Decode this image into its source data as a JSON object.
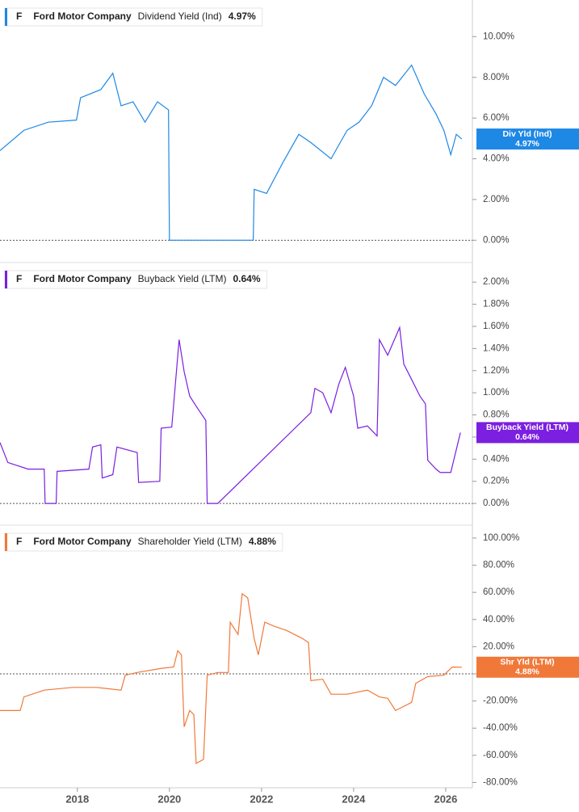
{
  "chart_data": [
    {
      "type": "line",
      "ticker": "F",
      "company": "Ford Motor Company",
      "title": "Dividend Yield (Ind)",
      "value_label": "4.97%",
      "x": [
        2016.32,
        2016.84,
        2017.37,
        2017.98,
        2018.07,
        2018.51,
        2018.77,
        2018.95,
        2019.21,
        2019.47,
        2019.74,
        2019.98,
        2020.0,
        2021.82,
        2021.84,
        2022.11,
        2022.46,
        2022.81,
        2023.07,
        2023.51,
        2023.86,
        2024.12,
        2024.39,
        2024.65,
        2024.91,
        2025.26,
        2025.53,
        2025.79,
        2025.96,
        2026.11,
        2026.23,
        2026.35
      ],
      "series": [
        {
          "name": "Div Yld (Ind)",
          "color": "#1e88e5",
          "values": [
            4.4,
            5.4,
            5.8,
            5.9,
            7.0,
            7.4,
            8.2,
            6.6,
            6.8,
            5.8,
            6.8,
            6.4,
            0,
            0,
            2.5,
            2.3,
            3.8,
            5.2,
            4.8,
            4.0,
            5.4,
            5.8,
            6.6,
            8.0,
            7.6,
            8.6,
            7.2,
            6.2,
            5.4,
            4.2,
            5.2,
            4.97
          ]
        }
      ],
      "xlim": [
        2016.32,
        2026.58
      ],
      "ylim": [
        -0.9,
        11.6
      ],
      "yticks": [
        {
          "value": 0,
          "label": "0.00%"
        },
        {
          "value": 2,
          "label": "2.00%"
        },
        {
          "value": 4,
          "label": "4.00%"
        },
        {
          "value": 6,
          "label": "6.00%"
        },
        {
          "value": 8,
          "label": "8.00%"
        },
        {
          "value": 10,
          "label": "10.00%"
        }
      ]
    },
    {
      "type": "line",
      "ticker": "F",
      "company": "Ford Motor Company",
      "title": "Buyback Yield (LTM)",
      "value_label": "0.64%",
      "x": [
        2016.32,
        2016.49,
        2016.93,
        2017.28,
        2017.3,
        2017.54,
        2017.56,
        2018.25,
        2018.33,
        2018.51,
        2018.54,
        2018.77,
        2018.86,
        2019.3,
        2019.33,
        2019.79,
        2019.82,
        2020.05,
        2020.21,
        2020.32,
        2020.44,
        2020.61,
        2020.79,
        2020.82,
        2021.05,
        2023.07,
        2023.16,
        2023.33,
        2023.51,
        2023.68,
        2023.82,
        2024.0,
        2024.09,
        2024.3,
        2024.51,
        2024.56,
        2024.74,
        2025.0,
        2025.09,
        2025.26,
        2025.44,
        2025.56,
        2025.61,
        2025.79,
        2025.88,
        2026.11,
        2026.32
      ],
      "series": [
        {
          "name": "Buyback Yield (LTM)",
          "color": "#7b1fe0",
          "values": [
            0.55,
            0.37,
            0.31,
            0.31,
            0,
            0,
            0.29,
            0.31,
            0.51,
            0.53,
            0.23,
            0.26,
            0.51,
            0.46,
            0.19,
            0.2,
            0.68,
            0.69,
            1.48,
            1.19,
            0.97,
            0.86,
            0.75,
            0,
            0,
            0.82,
            1.04,
            1.0,
            0.82,
            1.08,
            1.23,
            0.97,
            0.68,
            0.7,
            0.61,
            1.48,
            1.34,
            1.59,
            1.26,
            1.12,
            0.97,
            0.9,
            0.39,
            0.31,
            0.28,
            0.28,
            0.64
          ]
        }
      ],
      "xlim": [
        2016.32,
        2026.58
      ],
      "ylim": [
        -0.16,
        2.14
      ],
      "yticks": [
        {
          "value": 0,
          "label": "0.00%"
        },
        {
          "value": 0.2,
          "label": "0.20%"
        },
        {
          "value": 0.4,
          "label": "0.40%"
        },
        {
          "value": 0.6,
          "label": "0.60%"
        },
        {
          "value": 0.8,
          "label": "0.80%"
        },
        {
          "value": 1,
          "label": "1.00%"
        },
        {
          "value": 1.2,
          "label": "1.20%"
        },
        {
          "value": 1.4,
          "label": "1.40%"
        },
        {
          "value": 1.6,
          "label": "1.60%"
        },
        {
          "value": 1.8,
          "label": "1.80%"
        },
        {
          "value": 2,
          "label": "2.00%"
        }
      ]
    },
    {
      "type": "line",
      "ticker": "F",
      "company": "Ford Motor Company",
      "title": "Shareholder Yield (LTM)",
      "value_label": "4.88%",
      "x": [
        2016.32,
        2016.76,
        2016.84,
        2017.28,
        2017.89,
        2018.42,
        2018.95,
        2019.04,
        2019.3,
        2019.82,
        2020.09,
        2020.18,
        2020.26,
        2020.32,
        2020.44,
        2020.53,
        2020.58,
        2020.74,
        2020.82,
        2021.05,
        2021.28,
        2021.32,
        2021.49,
        2021.58,
        2021.7,
        2021.84,
        2021.93,
        2022.07,
        2022.28,
        2022.54,
        2022.89,
        2023.02,
        2023.07,
        2023.33,
        2023.51,
        2023.86,
        2024.3,
        2024.56,
        2024.74,
        2024.91,
        2025.26,
        2025.35,
        2025.61,
        2025.96,
        2026.14,
        2026.35
      ],
      "series": [
        {
          "name": "Shr Yld (LTM)",
          "color": "#f0793a",
          "values": [
            -27,
            -27,
            -17,
            -12,
            -10,
            -10,
            -12,
            -1,
            1,
            4,
            5,
            17,
            14,
            -39,
            -27,
            -30,
            -66,
            -63,
            -1,
            1,
            1,
            38,
            29,
            59,
            56,
            26,
            14,
            38,
            35,
            32,
            26,
            23,
            -5,
            -4,
            -15,
            -15,
            -12,
            -17,
            -18,
            -27,
            -21,
            -7,
            -2,
            -1,
            5,
            4.88
          ]
        }
      ],
      "xlim": [
        2016.32,
        2026.58
      ],
      "ylim": [
        -83.9,
        106.5
      ],
      "yticks": [
        {
          "value": -80,
          "label": "-80.00%"
        },
        {
          "value": -60,
          "label": "-60.00%"
        },
        {
          "value": -40,
          "label": "-40.00%"
        },
        {
          "value": -20,
          "label": "-20.00%"
        },
        {
          "value": 0,
          "label": "0.00%"
        },
        {
          "value": 20,
          "label": "20.00%"
        },
        {
          "value": 40,
          "label": "40.00%"
        },
        {
          "value": 60,
          "label": "60.00%"
        },
        {
          "value": 80,
          "label": "80.00%"
        },
        {
          "value": 100,
          "label": "100.00%"
        }
      ],
      "xticks": [
        2018,
        2020,
        2022,
        2024,
        2026
      ]
    }
  ]
}
